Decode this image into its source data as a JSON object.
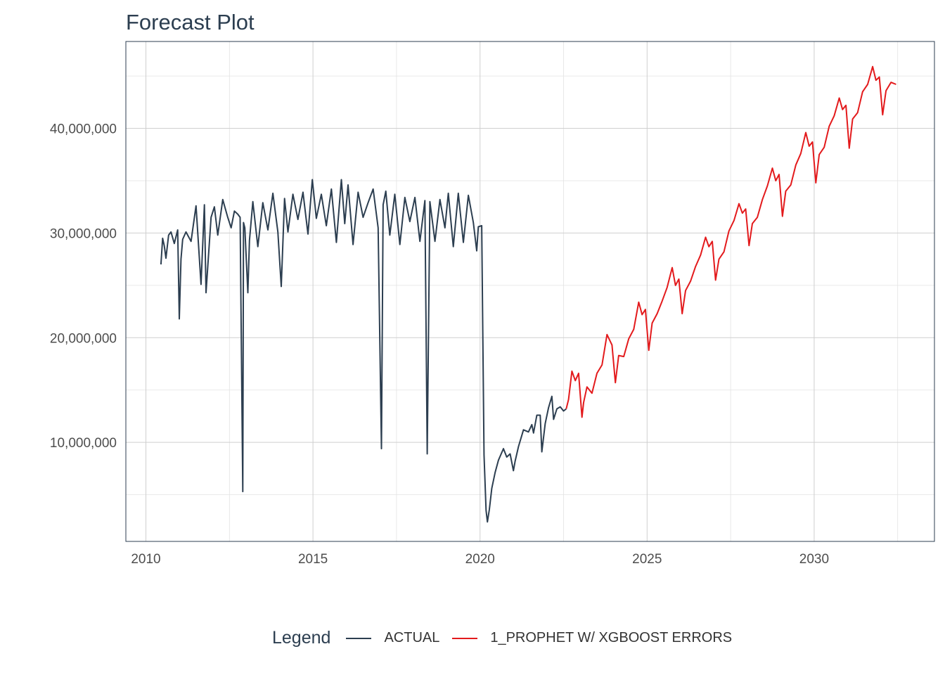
{
  "title": "Forecast Plot",
  "legend": {
    "title": "Legend",
    "items": [
      {
        "label": "ACTUAL",
        "color": "#2c3e50"
      },
      {
        "label": "1_PROPHET W/ XGBOOST ERRORS",
        "color": "#e31a1c"
      }
    ]
  },
  "chart_data": {
    "type": "line",
    "title": "Forecast Plot",
    "xlabel": "",
    "ylabel": "",
    "xlim": [
      2009.4,
      2033.6
    ],
    "ylim": [
      540000,
      48300000
    ],
    "x_ticks": [
      2010,
      2015,
      2020,
      2025,
      2030
    ],
    "x_tick_labels": [
      "2010",
      "2015",
      "2020",
      "2025",
      "2030"
    ],
    "y_ticks": [
      10000000,
      20000000,
      30000000,
      40000000
    ],
    "y_tick_labels": [
      "10,000,000",
      "20,000,000",
      "30,000,000",
      "40,000,000"
    ],
    "grid": true,
    "legend_position": "bottom",
    "series": [
      {
        "name": "ACTUAL",
        "color": "#2c3e50",
        "x": [
          2010.45,
          2010.5,
          2010.55,
          2010.6,
          2010.68,
          2010.75,
          2010.85,
          2010.95,
          2011.0,
          2011.05,
          2011.1,
          2011.2,
          2011.35,
          2011.5,
          2011.65,
          2011.75,
          2011.8,
          2011.95,
          2012.05,
          2012.15,
          2012.3,
          2012.45,
          2012.55,
          2012.65,
          2012.75,
          2012.82,
          2012.9,
          2012.92,
          2012.96,
          2013.05,
          2013.1,
          2013.2,
          2013.35,
          2013.5,
          2013.65,
          2013.8,
          2013.95,
          2014.05,
          2014.15,
          2014.25,
          2014.4,
          2014.55,
          2014.7,
          2014.85,
          2014.98,
          2015.1,
          2015.25,
          2015.4,
          2015.55,
          2015.7,
          2015.85,
          2015.95,
          2016.05,
          2016.2,
          2016.35,
          2016.5,
          2016.65,
          2016.8,
          2016.95,
          2017.05,
          2017.1,
          2017.18,
          2017.3,
          2017.45,
          2017.6,
          2017.75,
          2017.9,
          2018.05,
          2018.2,
          2018.35,
          2018.42,
          2018.5,
          2018.65,
          2018.8,
          2018.95,
          2019.05,
          2019.2,
          2019.35,
          2019.5,
          2019.65,
          2019.8,
          2019.9,
          2019.95,
          2020.05,
          2020.12,
          2020.18,
          2020.22,
          2020.28,
          2020.35,
          2020.45,
          2020.55,
          2020.7,
          2020.8,
          2020.9,
          2021.0,
          2021.05,
          2021.15,
          2021.3,
          2021.45,
          2021.55,
          2021.6,
          2021.7,
          2021.8,
          2021.85,
          2021.95,
          2022.05,
          2022.15,
          2022.2,
          2022.3,
          2022.4,
          2022.5,
          2022.58
        ],
        "y": [
          27000000,
          29500000,
          28800000,
          27600000,
          29800000,
          30100000,
          29000000,
          30300000,
          21800000,
          27500000,
          29400000,
          30100000,
          29200000,
          32600000,
          25100000,
          32700000,
          24300000,
          31500000,
          32500000,
          29800000,
          33200000,
          31500000,
          30500000,
          32100000,
          31800000,
          31500000,
          5300000,
          31000000,
          30500000,
          24300000,
          29300000,
          33000000,
          28700000,
          32900000,
          30300000,
          33800000,
          30100000,
          24900000,
          33300000,
          30100000,
          33700000,
          31300000,
          33900000,
          29900000,
          35100000,
          31400000,
          33700000,
          30700000,
          34200000,
          29100000,
          35100000,
          30900000,
          34600000,
          28900000,
          33900000,
          31500000,
          32900000,
          34200000,
          30500000,
          9400000,
          32700000,
          34000000,
          29800000,
          33700000,
          28900000,
          33400000,
          31100000,
          33400000,
          29200000,
          33100000,
          8900000,
          33000000,
          29200000,
          33200000,
          30500000,
          33800000,
          28700000,
          33800000,
          29100000,
          33600000,
          31000000,
          28300000,
          30600000,
          30700000,
          8800000,
          3500000,
          2400000,
          3600000,
          5600000,
          7100000,
          8300000,
          9400000,
          8600000,
          8900000,
          7300000,
          8200000,
          9600000,
          11200000,
          11000000,
          11700000,
          10900000,
          12600000,
          12600000,
          9100000,
          11800000,
          13300000,
          14400000,
          12200000,
          13200000,
          13400000,
          13000000,
          13200000
        ]
      },
      {
        "name": "1_PROPHET W/ XGBOOST ERRORS",
        "color": "#e31a1c",
        "x": [
          2022.58,
          2022.65,
          2022.75,
          2022.85,
          2022.95,
          2023.05,
          2023.1,
          2023.2,
          2023.35,
          2023.5,
          2023.65,
          2023.8,
          2023.95,
          2024.05,
          2024.15,
          2024.3,
          2024.45,
          2024.6,
          2024.75,
          2024.85,
          2024.95,
          2025.05,
          2025.15,
          2025.3,
          2025.45,
          2025.6,
          2025.75,
          2025.85,
          2025.95,
          2026.05,
          2026.15,
          2026.3,
          2026.45,
          2026.6,
          2026.75,
          2026.85,
          2026.95,
          2027.05,
          2027.15,
          2027.3,
          2027.45,
          2027.6,
          2027.75,
          2027.85,
          2027.95,
          2028.05,
          2028.15,
          2028.3,
          2028.45,
          2028.6,
          2028.75,
          2028.85,
          2028.95,
          2029.05,
          2029.15,
          2029.3,
          2029.45,
          2029.6,
          2029.75,
          2029.85,
          2029.95,
          2030.05,
          2030.15,
          2030.3,
          2030.45,
          2030.6,
          2030.75,
          2030.85,
          2030.95,
          2031.05,
          2031.15,
          2031.3,
          2031.45,
          2031.6,
          2031.75,
          2031.85,
          2031.95,
          2032.05,
          2032.15,
          2032.3,
          2032.45
        ],
        "y": [
          13200000,
          14100000,
          16800000,
          15900000,
          16600000,
          12400000,
          13800000,
          15300000,
          14700000,
          16600000,
          17400000,
          20300000,
          19300000,
          15700000,
          18300000,
          18200000,
          19900000,
          20800000,
          23400000,
          22200000,
          22700000,
          18800000,
          21400000,
          22300000,
          23500000,
          24800000,
          26700000,
          25000000,
          25600000,
          22300000,
          24500000,
          25400000,
          26800000,
          27900000,
          29600000,
          28700000,
          29200000,
          25500000,
          27500000,
          28200000,
          30200000,
          31200000,
          32800000,
          31900000,
          32300000,
          28800000,
          30900000,
          31500000,
          33200000,
          34500000,
          36200000,
          35000000,
          35600000,
          31600000,
          34000000,
          34600000,
          36500000,
          37600000,
          39600000,
          38300000,
          38700000,
          34800000,
          37500000,
          38200000,
          40200000,
          41200000,
          42900000,
          41800000,
          42200000,
          38100000,
          40900000,
          41500000,
          43500000,
          44200000,
          45900000,
          44600000,
          44900000,
          41300000,
          43600000,
          44400000,
          44200000
        ]
      }
    ]
  }
}
